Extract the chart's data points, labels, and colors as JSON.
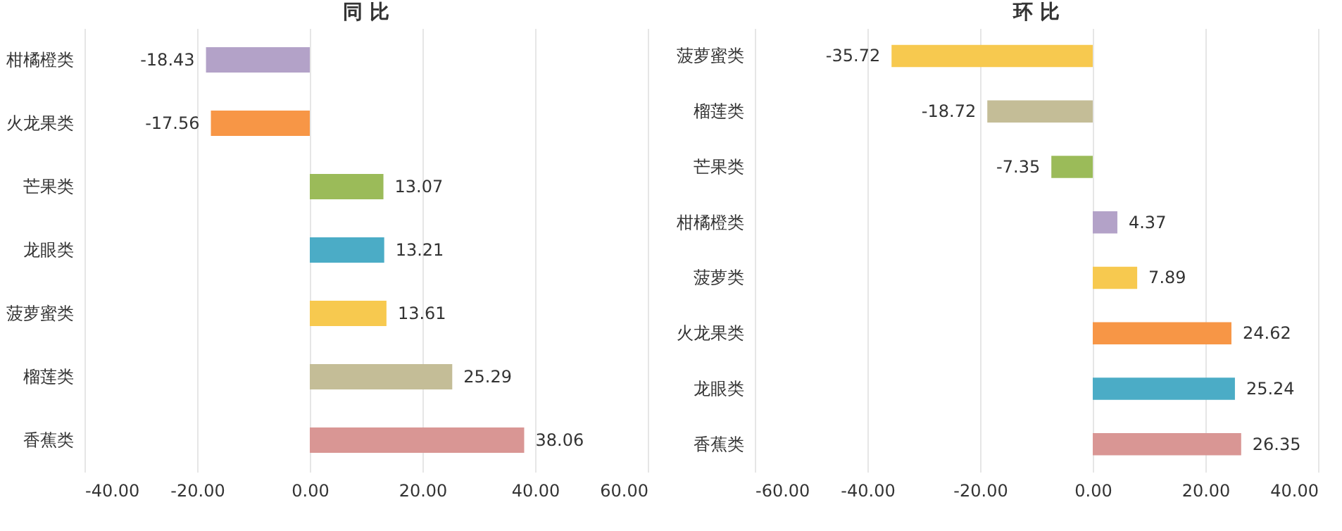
{
  "chart_data": [
    {
      "type": "bar",
      "orientation": "horizontal",
      "title": "同 比",
      "categories": [
        "柑橘橙类",
        "火龙果类",
        "芒果类",
        "龙眼类",
        "菠萝蜜类",
        "榴莲类",
        "香蕉类"
      ],
      "values": [
        -18.43,
        -17.56,
        13.07,
        13.21,
        13.61,
        25.29,
        38.06
      ],
      "colors": [
        "#b3a2c8",
        "#f79646",
        "#9bbb59",
        "#4bacc6",
        "#f7c94f",
        "#c4bd97",
        "#d99694"
      ],
      "xlim": [
        -40,
        60
      ],
      "xticks": [
        {
          "value": -40,
          "label": "-40.00"
        },
        {
          "value": -20,
          "label": "-20.00"
        },
        {
          "value": 0,
          "label": "0.00"
        },
        {
          "value": 20,
          "label": "20.00"
        },
        {
          "value": 40,
          "label": "40.00"
        },
        {
          "value": 60,
          "label": "60.00"
        }
      ],
      "grid": "x",
      "data_labels": true
    },
    {
      "type": "bar",
      "orientation": "horizontal",
      "title": "环 比",
      "categories": [
        "菠萝蜜类",
        "榴莲类",
        "芒果类",
        "柑橘橙类",
        "菠萝类",
        "火龙果类",
        "龙眼类",
        "香蕉类"
      ],
      "values": [
        -35.72,
        -18.72,
        -7.35,
        4.37,
        7.89,
        24.62,
        25.24,
        26.35
      ],
      "colors": [
        "#f7c94f",
        "#c4bd97",
        "#9bbb59",
        "#b3a2c8",
        "#f7c94f",
        "#f79646",
        "#4bacc6",
        "#d99694"
      ],
      "xlim": [
        -60,
        40
      ],
      "xticks": [
        {
          "value": -60,
          "label": "-60.00"
        },
        {
          "value": -40,
          "label": "-40.00"
        },
        {
          "value": -20,
          "label": "-20.00"
        },
        {
          "value": 0,
          "label": "0.00"
        },
        {
          "value": 20,
          "label": "20.00"
        },
        {
          "value": 40,
          "label": "40.00"
        }
      ],
      "grid": "x",
      "data_labels": true
    }
  ]
}
